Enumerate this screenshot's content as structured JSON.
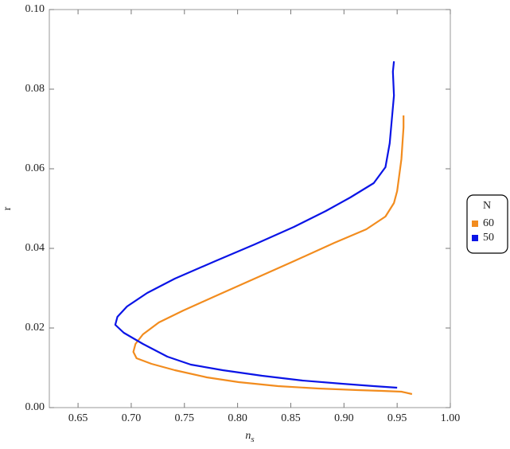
{
  "chart_data": {
    "type": "line",
    "xlabel": [
      "n",
      "s"
    ],
    "ylabel": "r",
    "xlim": [
      0.623,
      1.0
    ],
    "ylim": [
      0,
      0.1
    ],
    "xticks": [
      0.65,
      {
        "value": 0.7,
        "label": "0.70"
      },
      {
        "value": 0.75,
        "label": "0.75"
      },
      {
        "value": 0.8,
        "label": "0.80"
      },
      0.85,
      {
        "value": 0.9,
        "label": "0.90"
      },
      0.95,
      {
        "value": 1.0,
        "label": "1.00"
      }
    ],
    "yticks": [
      {
        "value": 0,
        "label": "0.00"
      },
      0.02,
      0.04,
      0.06,
      0.08,
      {
        "value": 0.1,
        "label": "0.10"
      }
    ],
    "legend_title": "N",
    "legend_position": "right",
    "series": [
      {
        "name": "60",
        "color": "#f28c1e",
        "x": [
          0.964,
          0.954,
          0.9355,
          0.913,
          0.876,
          0.838,
          0.801,
          0.771,
          0.741,
          0.719,
          0.705,
          0.702,
          0.704,
          0.711,
          0.726,
          0.749,
          0.779,
          0.816,
          0.853,
          0.891,
          0.921,
          0.939,
          0.947,
          0.95,
          0.952,
          0.954,
          0.955,
          0.956,
          0.956
        ],
        "values": [
          0.0034,
          0.004,
          0.0042,
          0.0044,
          0.0048,
          0.0054,
          0.0064,
          0.0076,
          0.0094,
          0.011,
          0.0124,
          0.014,
          0.016,
          0.0184,
          0.0214,
          0.0244,
          0.028,
          0.0324,
          0.0368,
          0.0414,
          0.0448,
          0.048,
          0.0514,
          0.0544,
          0.0584,
          0.0624,
          0.0664,
          0.0704,
          0.0734
        ]
      },
      {
        "name": "50",
        "color": "#0a14e6",
        "x": [
          0.95,
          0.928,
          0.898,
          0.861,
          0.823,
          0.786,
          0.756,
          0.734,
          0.711,
          0.693,
          0.685,
          0.687,
          0.696,
          0.715,
          0.741,
          0.779,
          0.816,
          0.853,
          0.883,
          0.906,
          0.928,
          0.939,
          0.943,
          0.945,
          0.947,
          0.946,
          0.947
        ],
        "values": [
          0.005,
          0.0054,
          0.006,
          0.0068,
          0.008,
          0.0094,
          0.0108,
          0.0128,
          0.016,
          0.0188,
          0.0208,
          0.0228,
          0.0254,
          0.0288,
          0.0324,
          0.0368,
          0.041,
          0.0454,
          0.0494,
          0.0528,
          0.0564,
          0.0604,
          0.0664,
          0.0724,
          0.0784,
          0.0844,
          0.087
        ]
      }
    ]
  }
}
